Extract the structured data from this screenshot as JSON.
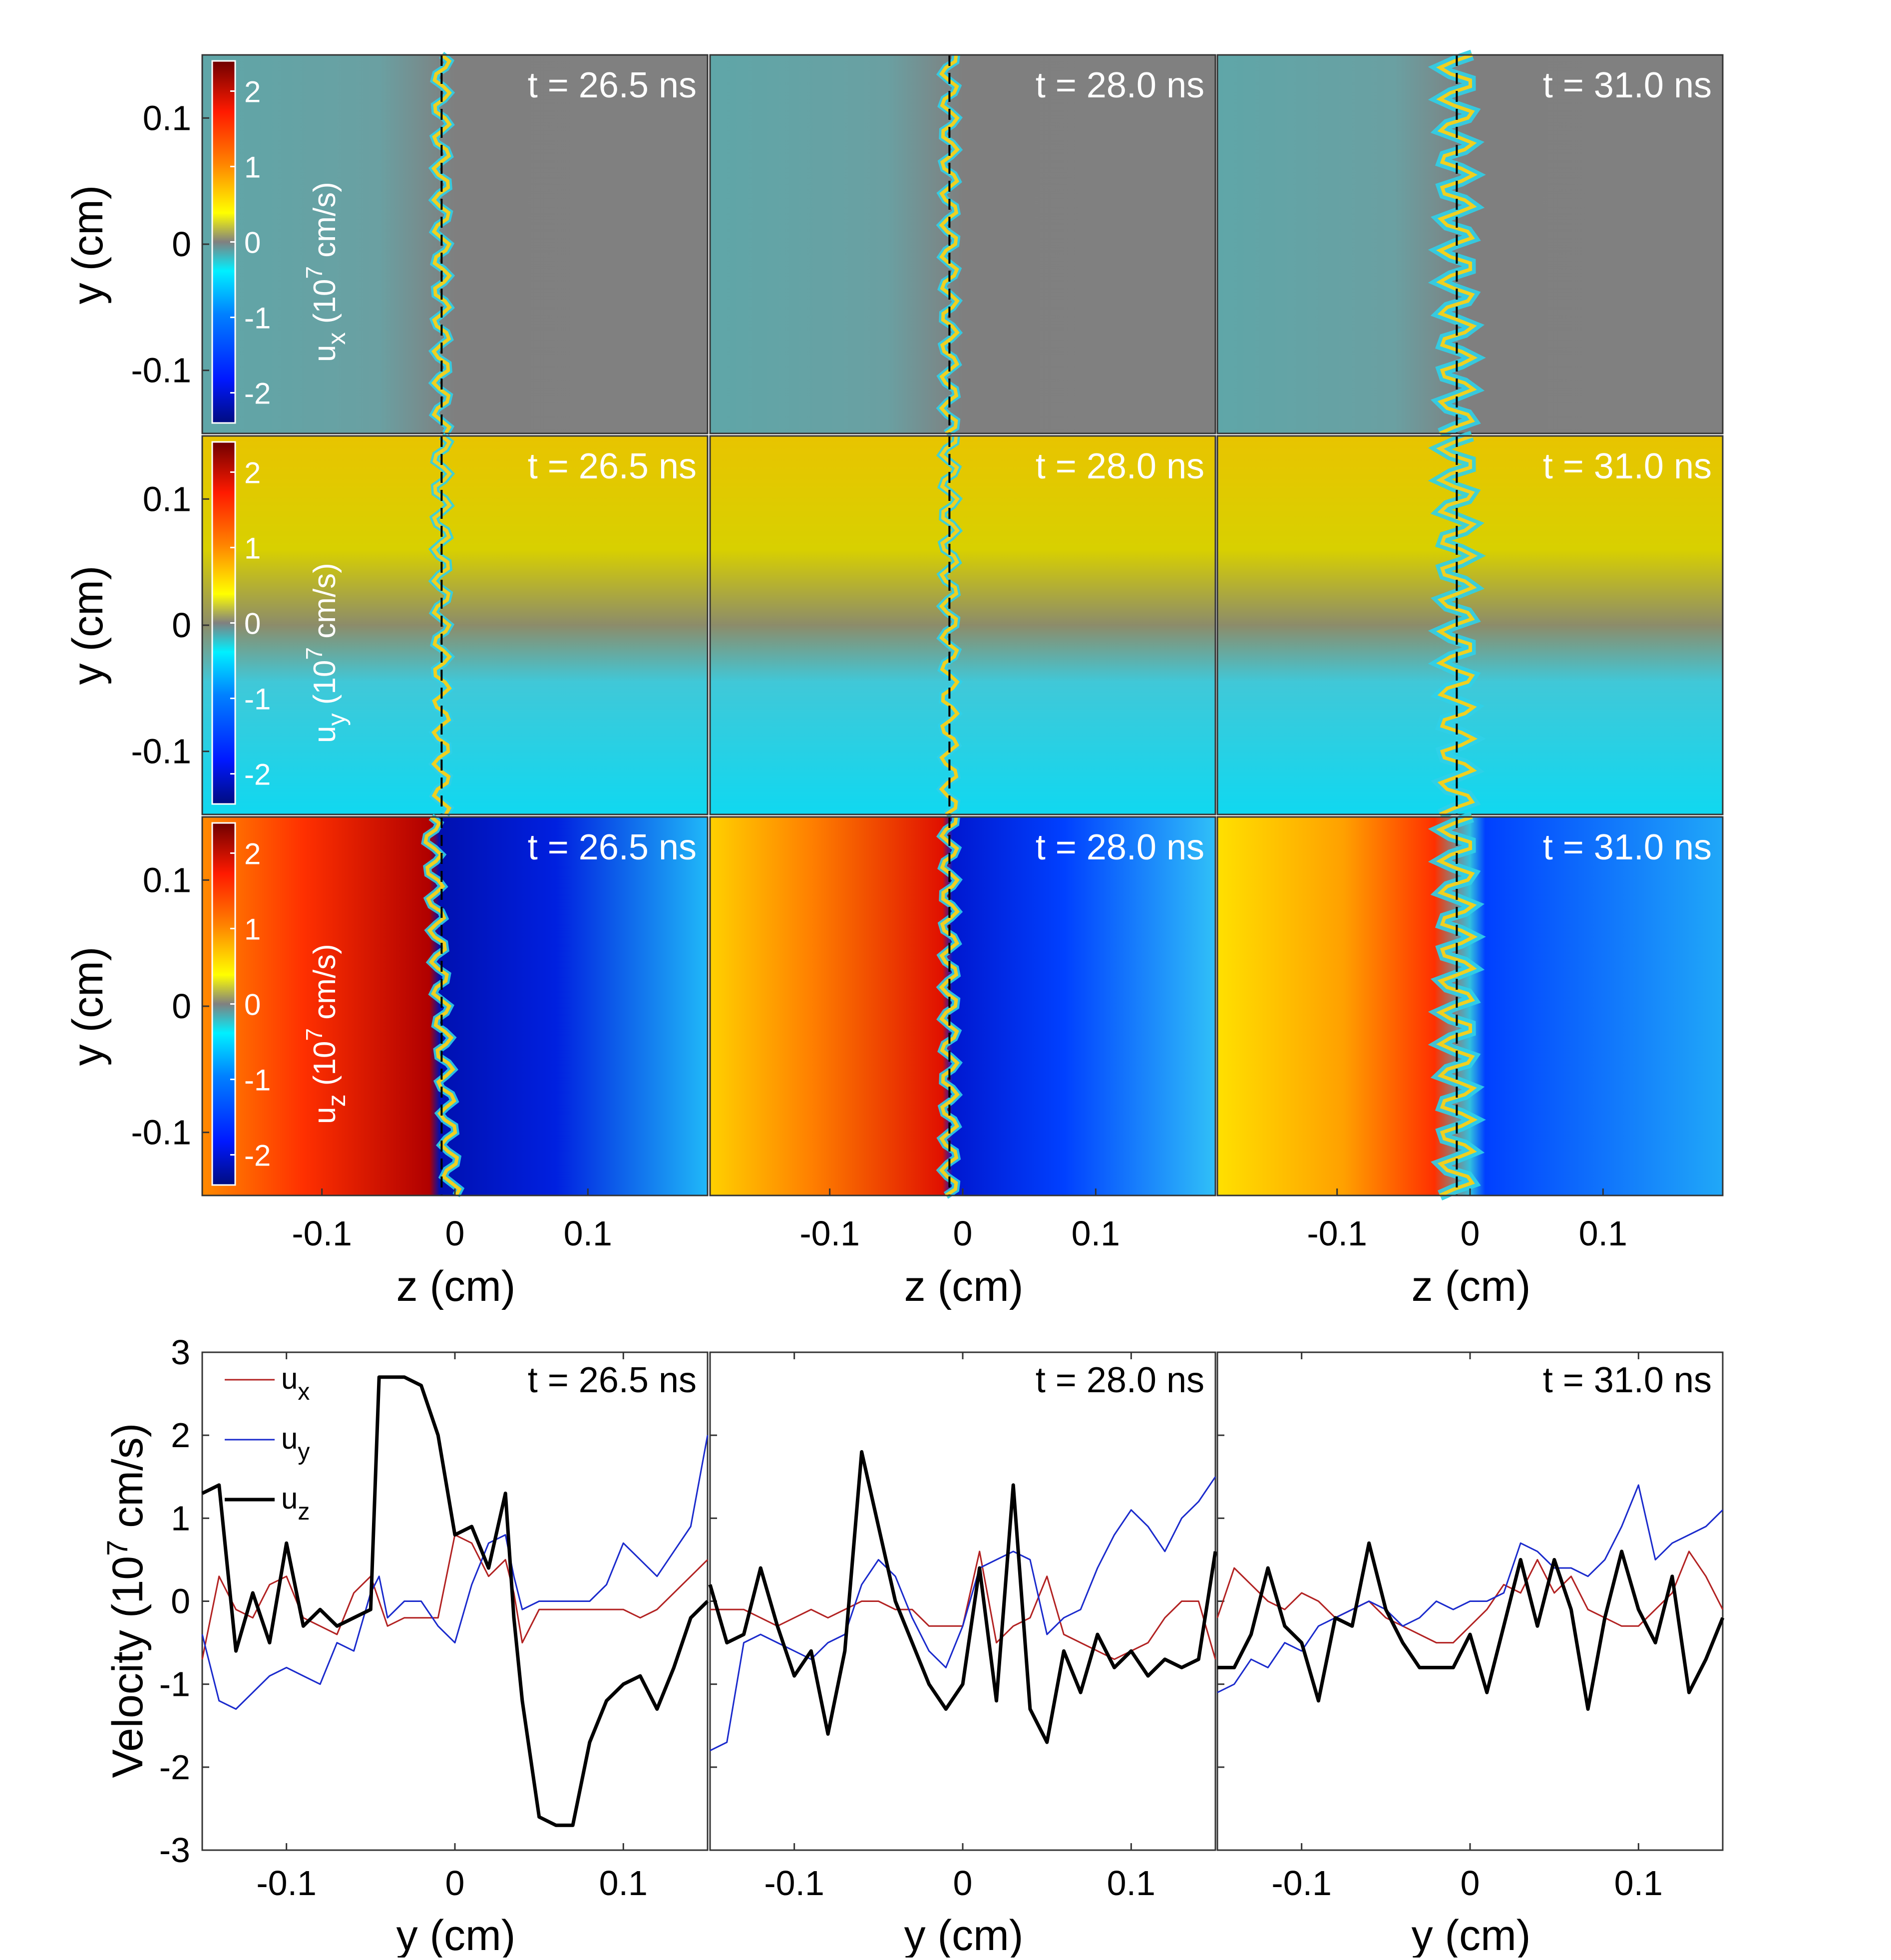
{
  "colors": {
    "ux": "#b22222",
    "uy": "#1a2acc",
    "uz": "#000000",
    "colormap_negative": [
      "#000c80",
      "#0018ff",
      "#0080ff",
      "#00f0ff"
    ],
    "colormap_zero": "#808080",
    "colormap_positive": [
      "#ffff00",
      "#ff8000",
      "#ff1a00",
      "#700000"
    ]
  },
  "times": [
    "t = 26.5 ns",
    "t = 28.0 ns",
    "t = 31.0 ns"
  ],
  "field_maps": {
    "rows": [
      {
        "quantity": "u_x",
        "colorbar_label": "u_x (10^7 cm/s)"
      },
      {
        "quantity": "u_y",
        "colorbar_label": "u_y (10^7 cm/s)"
      },
      {
        "quantity": "u_z",
        "colorbar_label": "u_z (10^7 cm/s)"
      }
    ],
    "colorbar_ticks": [
      "2",
      "1",
      "0",
      "-1",
      "-2"
    ],
    "colorbar_range": [
      -2.4,
      2.4
    ],
    "y_ticks": [
      "0.1",
      "0",
      "-0.1"
    ],
    "z_ticks": [
      "-0.1",
      "0",
      "0.1"
    ],
    "xlabel": "z (cm)",
    "ylabel": "y (cm)",
    "xlim": [
      -0.19,
      0.19
    ],
    "ylim": [
      -0.15,
      0.15
    ],
    "interface_z": [
      -0.01,
      -0.01,
      -0.01
    ]
  },
  "chart_data": {
    "type": "line",
    "xlabel": "y (cm)",
    "ylabel": "Velocity (10^7 cm/s)",
    "xlim": [
      -0.15,
      0.15
    ],
    "ylim": [
      -3,
      3
    ],
    "yticks": [
      "3",
      "2",
      "1",
      "0",
      "-1",
      "-2",
      "-3"
    ],
    "xticks": [
      "-0.1",
      "0",
      "0.1"
    ],
    "legend": {
      "position": "top-left",
      "entries": [
        "u_x",
        "u_y",
        "u_z"
      ]
    },
    "panels": [
      {
        "title": "t = 26.5 ns",
        "x": [
          -0.15,
          -0.14,
          -0.13,
          -0.12,
          -0.11,
          -0.1,
          -0.09,
          -0.08,
          -0.07,
          -0.06,
          -0.05,
          -0.045,
          -0.04,
          -0.03,
          -0.02,
          -0.01,
          0.0,
          0.01,
          0.02,
          0.03,
          0.035,
          0.04,
          0.05,
          0.06,
          0.07,
          0.08,
          0.09,
          0.1,
          0.11,
          0.12,
          0.13,
          0.14,
          0.15
        ],
        "series": [
          {
            "name": "u_x",
            "values": [
              -0.7,
              0.3,
              -0.1,
              -0.2,
              0.2,
              0.3,
              -0.2,
              -0.3,
              -0.4,
              0.1,
              0.3,
              0.0,
              -0.3,
              -0.2,
              -0.2,
              -0.2,
              0.8,
              0.7,
              0.3,
              0.5,
              0.1,
              -0.5,
              -0.1,
              -0.1,
              -0.1,
              -0.1,
              -0.1,
              -0.1,
              -0.2,
              -0.1,
              0.1,
              0.3,
              0.5
            ]
          },
          {
            "name": "u_y",
            "values": [
              -0.4,
              -1.2,
              -1.3,
              -1.1,
              -0.9,
              -0.8,
              -0.9,
              -1.0,
              -0.5,
              -0.6,
              0.1,
              0.3,
              -0.2,
              0.0,
              0.0,
              -0.3,
              -0.5,
              0.2,
              0.7,
              0.8,
              0.3,
              -0.1,
              0.0,
              0.0,
              0.0,
              0.0,
              0.2,
              0.7,
              0.5,
              0.3,
              0.6,
              0.9,
              2.0
            ]
          },
          {
            "name": "u_z",
            "values": [
              1.3,
              1.4,
              -0.6,
              0.1,
              -0.5,
              0.7,
              -0.3,
              -0.1,
              -0.3,
              -0.2,
              -0.1,
              2.7,
              2.7,
              2.7,
              2.6,
              2.0,
              0.8,
              0.9,
              0.4,
              1.3,
              -0.2,
              -1.2,
              -2.6,
              -2.7,
              -2.7,
              -1.7,
              -1.2,
              -1.0,
              -0.9,
              -1.3,
              -0.8,
              -0.2,
              0.0
            ]
          }
        ]
      },
      {
        "title": "t = 28.0 ns",
        "x": [
          -0.15,
          -0.14,
          -0.13,
          -0.12,
          -0.11,
          -0.1,
          -0.09,
          -0.08,
          -0.07,
          -0.06,
          -0.05,
          -0.04,
          -0.03,
          -0.02,
          -0.01,
          0.0,
          0.01,
          0.02,
          0.03,
          0.04,
          0.05,
          0.06,
          0.07,
          0.08,
          0.09,
          0.1,
          0.11,
          0.12,
          0.13,
          0.14,
          0.15
        ],
        "series": [
          {
            "name": "u_x",
            "values": [
              -0.1,
              -0.1,
              -0.1,
              -0.2,
              -0.3,
              -0.2,
              -0.1,
              -0.2,
              -0.1,
              0.0,
              0.0,
              -0.1,
              -0.1,
              -0.3,
              -0.3,
              -0.3,
              0.6,
              -0.5,
              -0.3,
              -0.2,
              0.3,
              -0.4,
              -0.5,
              -0.6,
              -0.7,
              -0.6,
              -0.5,
              -0.2,
              0.0,
              0.0,
              -0.7
            ]
          },
          {
            "name": "u_y",
            "values": [
              -1.8,
              -1.7,
              -0.5,
              -0.4,
              -0.5,
              -0.6,
              -0.7,
              -0.5,
              -0.4,
              0.2,
              0.5,
              0.3,
              -0.2,
              -0.6,
              -0.8,
              -0.3,
              0.4,
              0.5,
              0.6,
              0.5,
              -0.4,
              -0.2,
              -0.1,
              0.4,
              0.8,
              1.1,
              0.9,
              0.6,
              1.0,
              1.2,
              1.5
            ]
          },
          {
            "name": "u_z",
            "values": [
              0.2,
              -0.5,
              -0.4,
              0.4,
              -0.3,
              -0.9,
              -0.6,
              -1.6,
              -0.6,
              1.8,
              0.9,
              0.0,
              -0.5,
              -1.0,
              -1.3,
              -1.0,
              0.4,
              -1.2,
              1.4,
              -1.3,
              -1.7,
              -0.6,
              -1.1,
              -0.4,
              -0.8,
              -0.6,
              -0.9,
              -0.7,
              -0.8,
              -0.7,
              0.6
            ]
          }
        ]
      },
      {
        "title": "t = 31.0 ns",
        "x": [
          -0.15,
          -0.14,
          -0.13,
          -0.12,
          -0.11,
          -0.1,
          -0.09,
          -0.08,
          -0.07,
          -0.06,
          -0.05,
          -0.04,
          -0.03,
          -0.02,
          -0.01,
          0.0,
          0.01,
          0.02,
          0.03,
          0.04,
          0.05,
          0.06,
          0.07,
          0.08,
          0.09,
          0.1,
          0.11,
          0.12,
          0.13,
          0.14,
          0.15
        ],
        "series": [
          {
            "name": "u_x",
            "values": [
              -0.2,
              0.4,
              0.2,
              0.0,
              -0.1,
              0.1,
              0.0,
              -0.2,
              -0.1,
              0.0,
              -0.2,
              -0.3,
              -0.4,
              -0.5,
              -0.5,
              -0.3,
              -0.1,
              0.2,
              0.1,
              0.5,
              0.1,
              0.3,
              -0.1,
              -0.2,
              -0.3,
              -0.3,
              -0.1,
              0.1,
              0.6,
              0.3,
              -0.1
            ]
          },
          {
            "name": "u_y",
            "values": [
              -1.1,
              -1.0,
              -0.7,
              -0.8,
              -0.5,
              -0.6,
              -0.3,
              -0.2,
              -0.1,
              0.0,
              -0.1,
              -0.3,
              -0.2,
              0.0,
              -0.1,
              0.0,
              0.0,
              0.1,
              0.7,
              0.6,
              0.4,
              0.4,
              0.3,
              0.5,
              0.9,
              1.4,
              0.5,
              0.7,
              0.8,
              0.9,
              1.1
            ]
          },
          {
            "name": "u_z",
            "values": [
              -0.8,
              -0.8,
              -0.4,
              0.4,
              -0.3,
              -0.5,
              -1.2,
              -0.2,
              -0.3,
              0.7,
              -0.1,
              -0.5,
              -0.8,
              -0.8,
              -0.8,
              -0.4,
              -1.1,
              -0.3,
              0.5,
              -0.3,
              0.5,
              -0.1,
              -1.3,
              -0.2,
              0.6,
              -0.1,
              -0.5,
              0.3,
              -1.1,
              -0.7,
              -0.2
            ]
          }
        ]
      }
    ]
  }
}
